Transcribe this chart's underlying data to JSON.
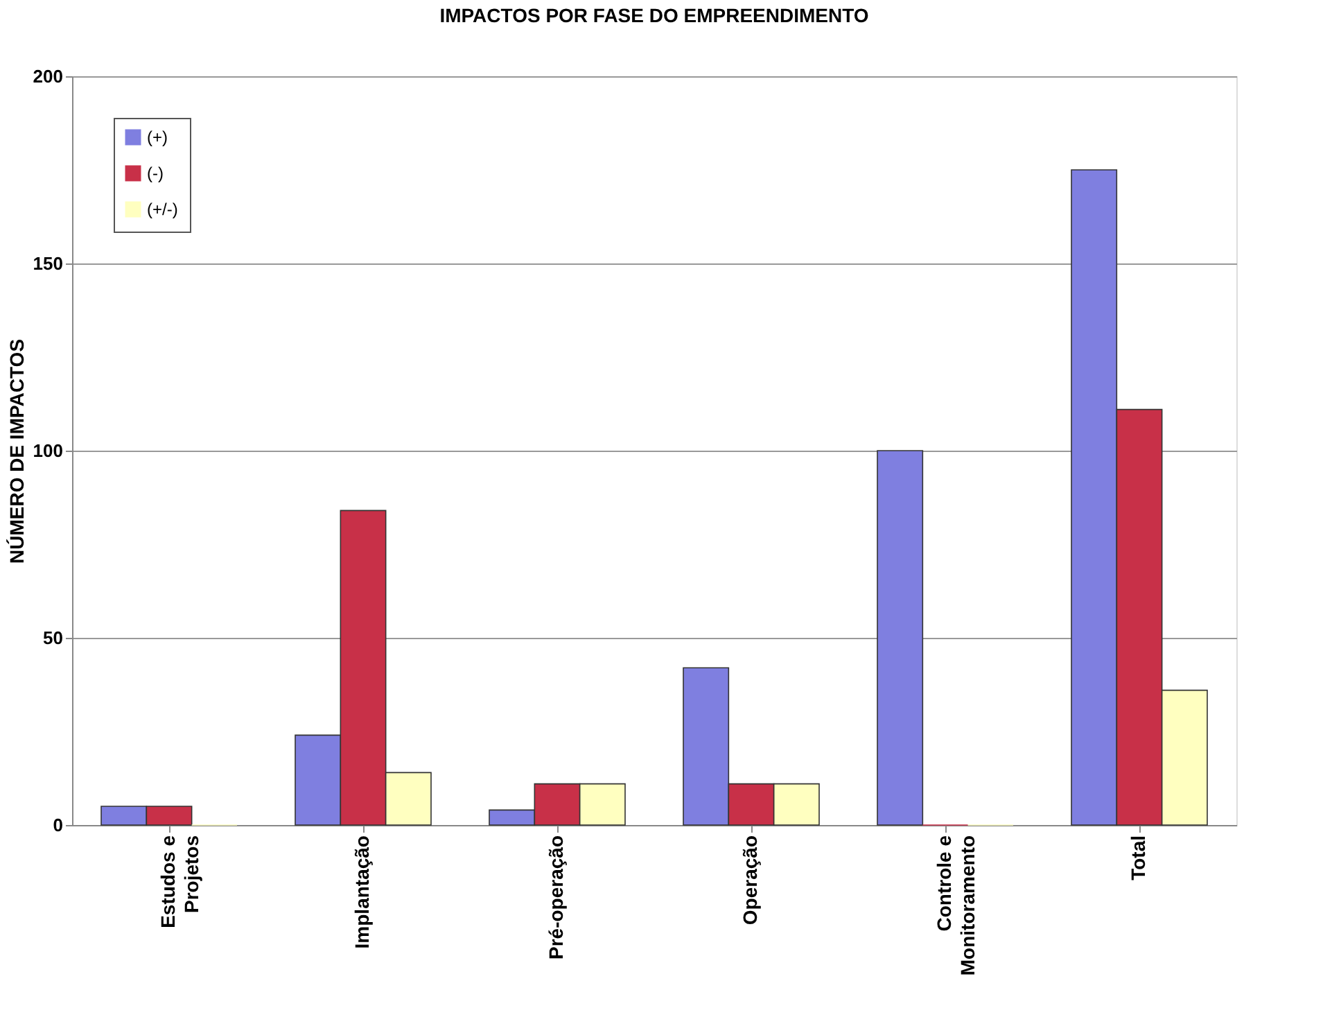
{
  "chart_data": {
    "type": "bar",
    "title": "IMPACTOS POR FASE DO EMPREENDIMENTO",
    "ylabel": "NÚMERO DE IMPACTOS",
    "categories": [
      "Estudos e\nProjetos",
      "Implantação",
      "Pré-operação",
      "Operação",
      "Controle e\nMonitoramento",
      "Total"
    ],
    "series": [
      {
        "name": "(+)",
        "color": "#7f7fe0",
        "values": [
          5,
          24,
          4,
          42,
          100,
          175
        ]
      },
      {
        "name": "(-)",
        "color": "#c83048",
        "values": [
          5,
          84,
          11,
          11,
          0,
          111
        ]
      },
      {
        "name": "(+/-)",
        "color": "#ffffc0",
        "values": [
          0,
          14,
          11,
          11,
          0,
          36
        ]
      }
    ],
    "ylim": [
      0,
      200
    ],
    "yticks": [
      0,
      50,
      100,
      150,
      200
    ],
    "grid": "y",
    "legend": "top left"
  }
}
